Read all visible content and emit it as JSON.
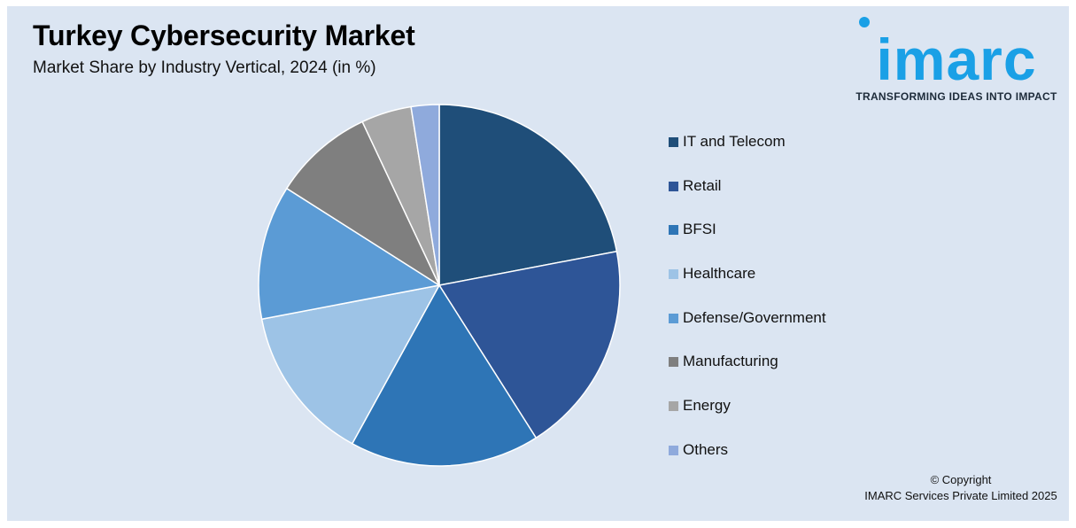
{
  "header": {
    "title": "Turkey Cybersecurity Market",
    "subtitle": "Market Share by Industry Vertical, 2024 (in %)"
  },
  "logo": {
    "wordmark": "imarc",
    "tagline": "TRANSFORMING IDEAS INTO IMPACT",
    "color": "#1aa0e6"
  },
  "footer": {
    "copyright_line1": "© Copyright",
    "copyright_line2": "IMARC Services Private Limited 2025"
  },
  "chart_data": {
    "type": "pie",
    "title": "Turkey Cybersecurity Market",
    "subtitle": "Market Share by Industry Vertical, 2024 (in %)",
    "unit": "%",
    "start_angle_deg": 0,
    "direction": "clockwise",
    "legend_position": "right",
    "categories": [
      "IT and Telecom",
      "Retail",
      "BFSI",
      "Healthcare",
      "Defense/Government",
      "Manufacturing",
      "Energy",
      "Others"
    ],
    "values": [
      22,
      19,
      17,
      14,
      12,
      9,
      4.5,
      2.5
    ],
    "colors": [
      "#1f4e79",
      "#2e5597",
      "#2e75b6",
      "#9dc3e6",
      "#5b9bd5",
      "#7f7f7f",
      "#a6a6a6",
      "#8faadc"
    ]
  }
}
